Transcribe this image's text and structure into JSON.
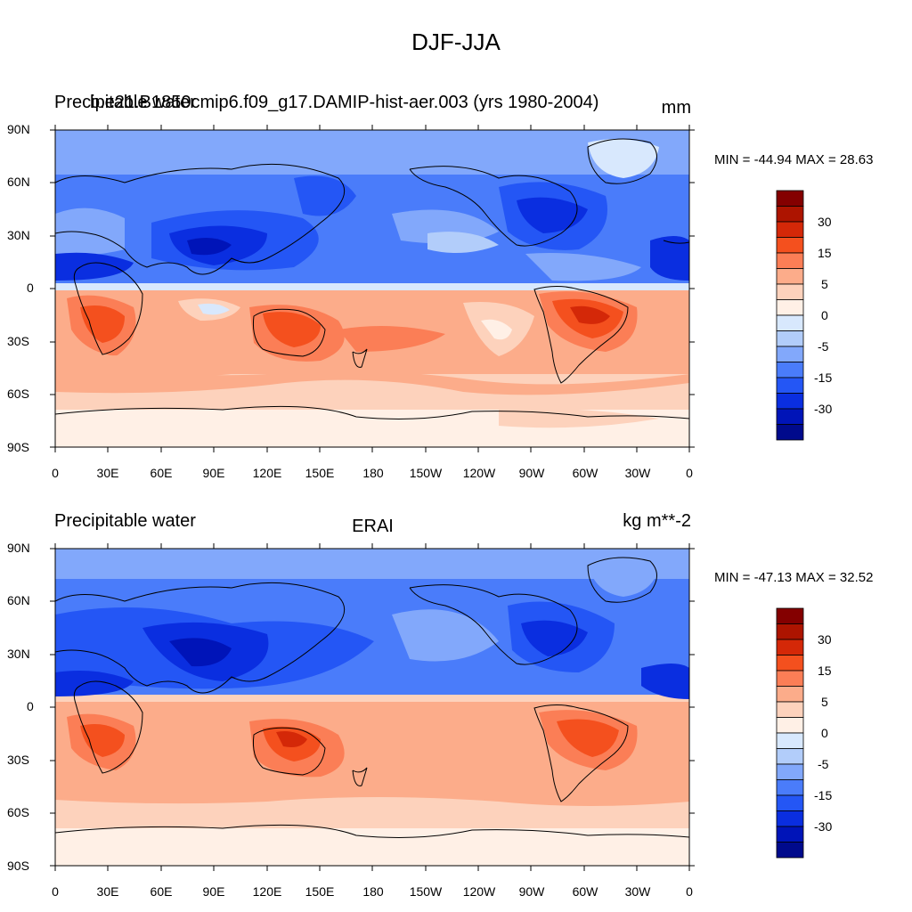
{
  "title": "DJF-JJA",
  "colors": {
    "ocean_band_n": "#9ec0f8",
    "land_coast": "#000000",
    "scale": [
      "#000a8c",
      "#0014b8",
      "#0a2ee0",
      "#2456f5",
      "#4a7cfa",
      "#82a8fb",
      "#b2cdfa",
      "#d8e8fd",
      "#fff0e6",
      "#fdd2bc",
      "#fcac8a",
      "#fb7e56",
      "#f4501e",
      "#d42808",
      "#ad1400",
      "#840000"
    ]
  },
  "panels": [
    {
      "left_title": "Precipitable water",
      "overlap_title": "b.e21.B1850cmip6.f09_g17.DAMIP-hist-aer.003 (yrs 1980-2004)",
      "center_title": "",
      "units": "mm",
      "stats": "MIN = -44.94 MAX =  28.63",
      "min": -44.94,
      "max": 28.63
    },
    {
      "left_title": "Precipitable water",
      "overlap_title": "",
      "center_title": "ERAI",
      "units": "kg m**-2",
      "stats": "MIN = -47.13 MAX =  32.52",
      "min": -47.13,
      "max": 32.52
    }
  ],
  "axes": {
    "y_ticks": [
      "90N",
      "60N",
      "30N",
      "0",
      "30S",
      "60S",
      "90S"
    ],
    "x_ticks": [
      "0",
      "30E",
      "60E",
      "90E",
      "120E",
      "150E",
      "180",
      "150W",
      "120W",
      "90W",
      "60W",
      "30W",
      "0"
    ]
  },
  "colorbar": {
    "labels": [
      "30",
      "15",
      "5",
      "0",
      "-5",
      "-15",
      "-30"
    ]
  }
}
